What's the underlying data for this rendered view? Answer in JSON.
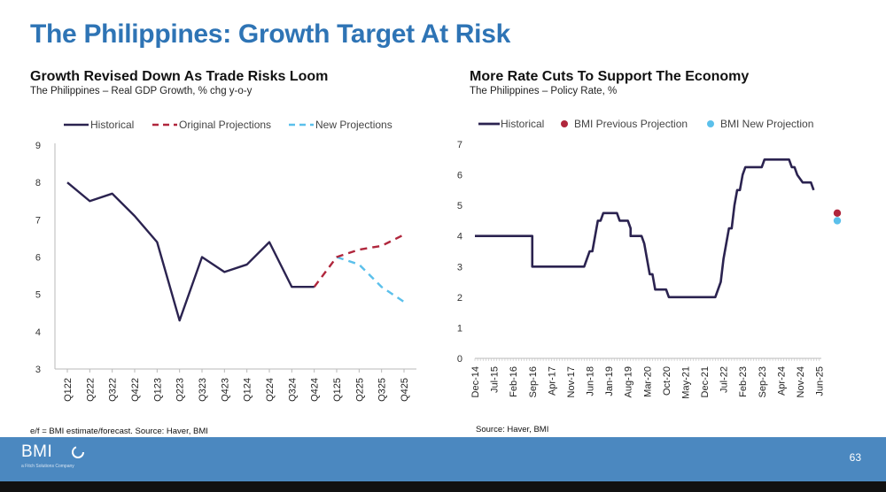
{
  "slide": {
    "title": "The Philippines: Growth Target At Risk",
    "page_number": "63"
  },
  "footer": {
    "logo": "BMI",
    "logo_tagline": "a Fitch Solutions Company"
  },
  "colors": {
    "historical": "#2b2350",
    "original": "#b0263c",
    "new": "#5bc0eb",
    "title": "#2e74b5",
    "footer": "#4b88c0"
  },
  "charts": [
    {
      "title": "Growth Revised Down As Trade Risks Loom",
      "subtitle": "The Philippines – Real GDP Growth, % chg y-o-y",
      "source": "e/f = BMI estimate/forecast. Source: Haver, BMI"
    },
    {
      "title": "More Rate Cuts To Support The Economy",
      "subtitle": "The Philippines – Policy Rate, %",
      "source": "Source: Haver, BMI"
    }
  ],
  "chart_data": [
    {
      "type": "line",
      "categories": [
        "Q122",
        "Q222",
        "Q322",
        "Q422",
        "Q123",
        "Q223",
        "Q323",
        "Q423",
        "Q124",
        "Q224",
        "Q324",
        "Q424",
        "Q125",
        "Q225",
        "Q325",
        "Q425"
      ],
      "ylim": [
        3,
        9
      ],
      "yticks": [
        3,
        4,
        5,
        6,
        7,
        8,
        9
      ],
      "grid": false,
      "legend_position": "top",
      "series": [
        {
          "name": "Historical",
          "style": "solid",
          "values": [
            8.0,
            7.5,
            7.7,
            7.1,
            6.4,
            4.3,
            6.0,
            5.6,
            5.8,
            6.4,
            5.2,
            5.2,
            null,
            null,
            null,
            null
          ]
        },
        {
          "name": "Original Projections",
          "style": "dashed",
          "values": [
            null,
            null,
            null,
            null,
            null,
            null,
            null,
            null,
            null,
            null,
            null,
            5.2,
            6.0,
            6.2,
            6.3,
            6.6
          ]
        },
        {
          "name": "New Projections",
          "style": "dashed",
          "values": [
            null,
            null,
            null,
            null,
            null,
            null,
            null,
            null,
            null,
            null,
            null,
            null,
            6.0,
            5.8,
            5.2,
            4.8
          ]
        }
      ]
    },
    {
      "type": "line",
      "x_labels": [
        "Dec-14",
        "Jul-15",
        "Feb-16",
        "Sep-16",
        "Apr-17",
        "Nov-17",
        "Jun-18",
        "Jan-19",
        "Aug-19",
        "Mar-20",
        "Oct-20",
        "May-21",
        "Dec-21",
        "Jul-22",
        "Feb-23",
        "Sep-23",
        "Apr-24",
        "Nov-24",
        "Jun-25"
      ],
      "ylim": [
        0,
        7
      ],
      "yticks": [
        0,
        1,
        2,
        3,
        4,
        5,
        6,
        7
      ],
      "grid": false,
      "legend_position": "top",
      "series": [
        {
          "name": "Historical",
          "style": "solid",
          "points": [
            [
              "Dec-14",
              4.0
            ],
            [
              "Sep-16",
              4.0
            ],
            [
              "Sep-16",
              3.0
            ],
            [
              "Apr-18",
              3.0
            ],
            [
              "May-18",
              3.25
            ],
            [
              "Jun-18",
              3.5
            ],
            [
              "Jul-18",
              3.5
            ],
            [
              "Aug-18",
              4.0
            ],
            [
              "Sep-18",
              4.5
            ],
            [
              "Oct-18",
              4.5
            ],
            [
              "Nov-18",
              4.75
            ],
            [
              "Apr-19",
              4.75
            ],
            [
              "May-19",
              4.5
            ],
            [
              "Aug-19",
              4.5
            ],
            [
              "Sep-19",
              4.25
            ],
            [
              "Sep-19",
              4.0
            ],
            [
              "Jan-20",
              4.0
            ],
            [
              "Feb-20",
              3.75
            ],
            [
              "Mar-20",
              3.25
            ],
            [
              "Apr-20",
              2.75
            ],
            [
              "May-20",
              2.75
            ],
            [
              "Jun-20",
              2.25
            ],
            [
              "Oct-20",
              2.25
            ],
            [
              "Nov-20",
              2.0
            ],
            [
              "Apr-22",
              2.0
            ],
            [
              "May-22",
              2.25
            ],
            [
              "Jun-22",
              2.5
            ],
            [
              "Jul-22",
              3.25
            ],
            [
              "Aug-22",
              3.75
            ],
            [
              "Sep-22",
              4.25
            ],
            [
              "Oct-22",
              4.25
            ],
            [
              "Nov-22",
              5.0
            ],
            [
              "Dec-22",
              5.5
            ],
            [
              "Jan-23",
              5.5
            ],
            [
              "Feb-23",
              6.0
            ],
            [
              "Mar-23",
              6.25
            ],
            [
              "Sep-23",
              6.25
            ],
            [
              "Oct-23",
              6.5
            ],
            [
              "Jul-24",
              6.5
            ],
            [
              "Aug-24",
              6.25
            ],
            [
              "Sep-24",
              6.25
            ],
            [
              "Oct-24",
              6.0
            ],
            [
              "Dec-24",
              5.75
            ],
            [
              "Mar-25",
              5.75
            ],
            [
              "Apr-25",
              5.5
            ]
          ]
        },
        {
          "name": "BMI Previous Projection",
          "style": "marker",
          "points": [
            [
              "Dec-25",
              4.75
            ]
          ]
        },
        {
          "name": "BMI New Projection",
          "style": "marker",
          "points": [
            [
              "Dec-25",
              4.5
            ]
          ]
        }
      ]
    }
  ]
}
